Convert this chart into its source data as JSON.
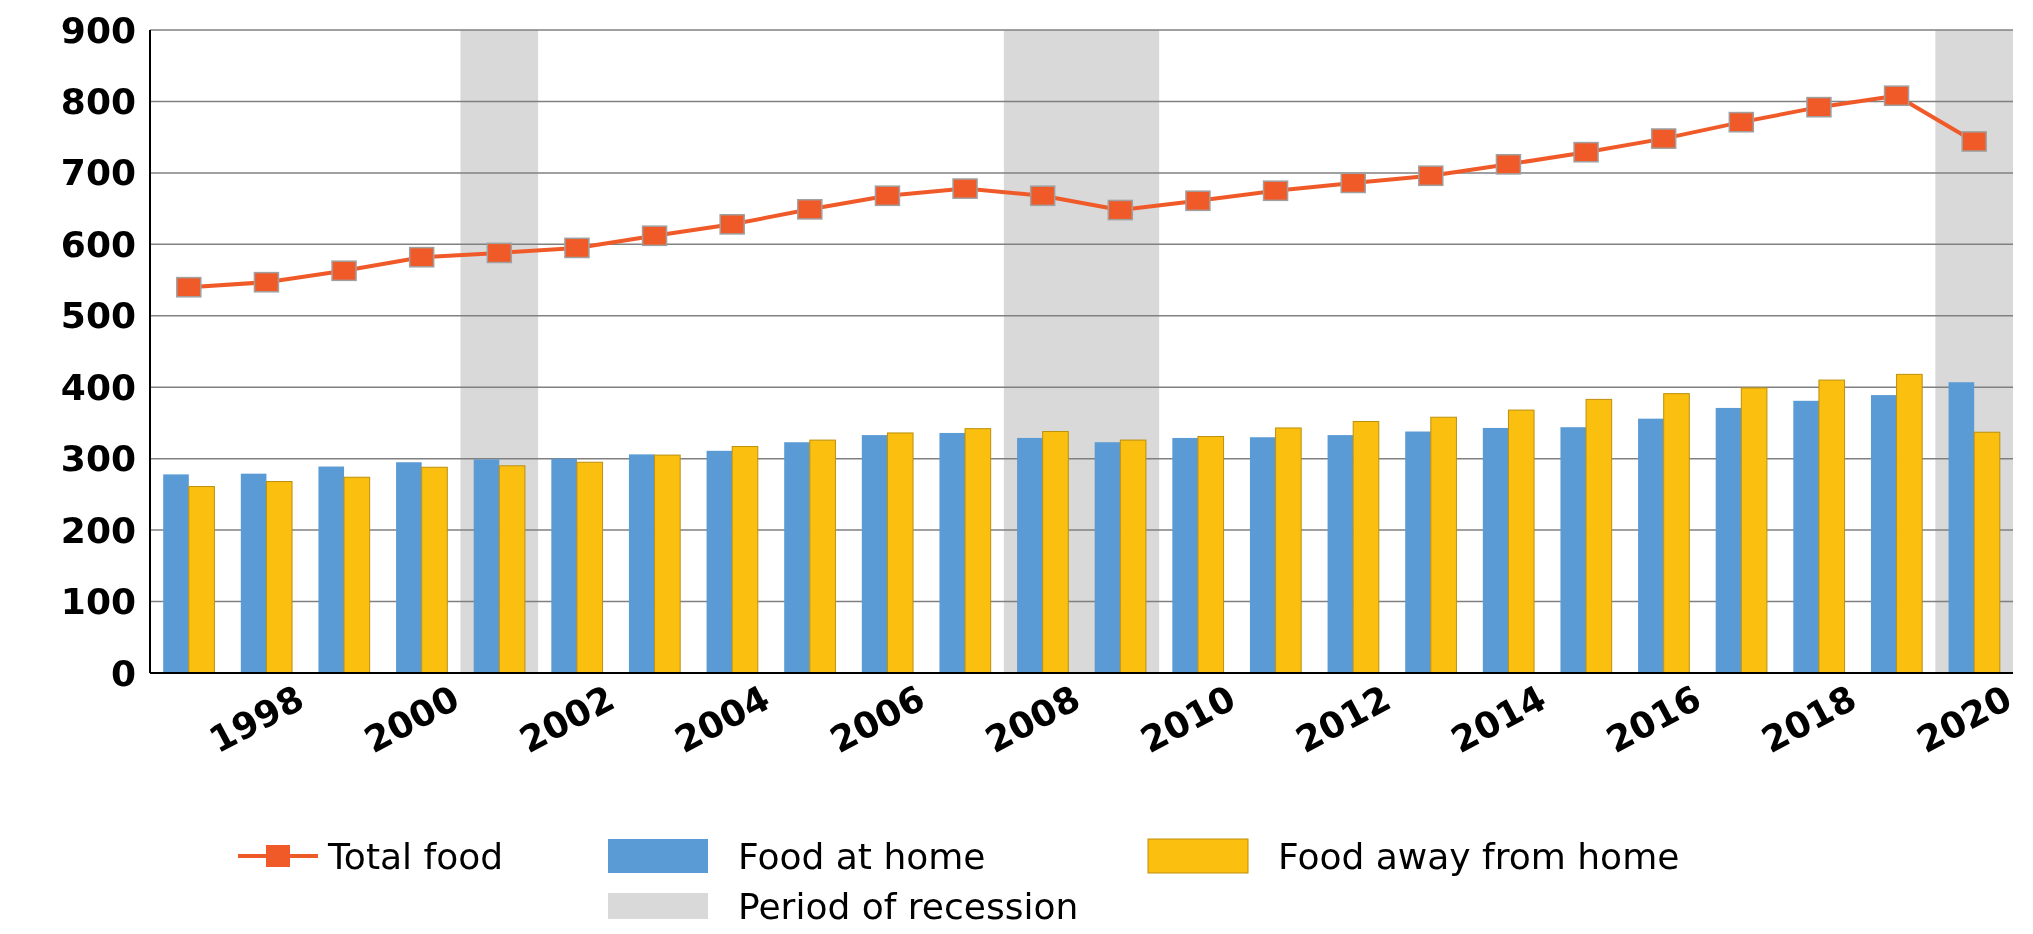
{
  "chart_data": {
    "type": "bar",
    "x": [
      1997,
      1998,
      1999,
      2000,
      2001,
      2002,
      2003,
      2004,
      2005,
      2006,
      2007,
      2008,
      2009,
      2010,
      2011,
      2012,
      2013,
      2014,
      2015,
      2016,
      2017,
      2018,
      2019,
      2020
    ],
    "xlim": [
      1996.5,
      2020.5
    ],
    "xticks": [
      1998,
      2000,
      2002,
      2004,
      2006,
      2008,
      2010,
      2012,
      2014,
      2016,
      2018,
      2020
    ],
    "ylim": [
      0,
      900
    ],
    "yticks": [
      0,
      100,
      200,
      300,
      400,
      500,
      600,
      700,
      800,
      900
    ],
    "grid": "y",
    "legend": "bottom",
    "series": [
      {
        "type": "line",
        "name": "Total food",
        "color": "#f05a28",
        "marker": "square",
        "values": [
          540,
          547,
          563,
          582,
          588,
          595,
          612,
          628,
          649,
          668,
          678,
          668,
          648,
          661,
          675,
          686,
          696,
          712,
          729,
          748,
          771,
          792,
          808,
          744
        ]
      },
      {
        "name": "Food at home",
        "color": "#5b9bd5",
        "values": [
          278,
          279,
          289,
          295,
          299,
          300,
          306,
          311,
          323,
          333,
          336,
          329,
          323,
          329,
          330,
          333,
          338,
          343,
          344,
          356,
          371,
          381,
          389,
          407
        ]
      },
      {
        "name": "Food away from home",
        "color": "#fbbf10",
        "values": [
          261,
          268,
          274,
          288,
          290,
          295,
          305,
          317,
          326,
          336,
          342,
          338,
          326,
          331,
          343,
          352,
          358,
          368,
          383,
          391,
          399,
          410,
          418,
          337
        ]
      }
    ],
    "bands": [
      {
        "axis": "x",
        "from": 2000.5,
        "to": 2001.5,
        "label": "Period of recession",
        "color": "#d9d9d9"
      },
      {
        "axis": "x",
        "from": 2007.5,
        "to": 2009.5,
        "color": "#d9d9d9"
      },
      {
        "axis": "x",
        "from": 2019.5,
        "to": 2020.5,
        "color": "#d9d9d9"
      }
    ]
  }
}
